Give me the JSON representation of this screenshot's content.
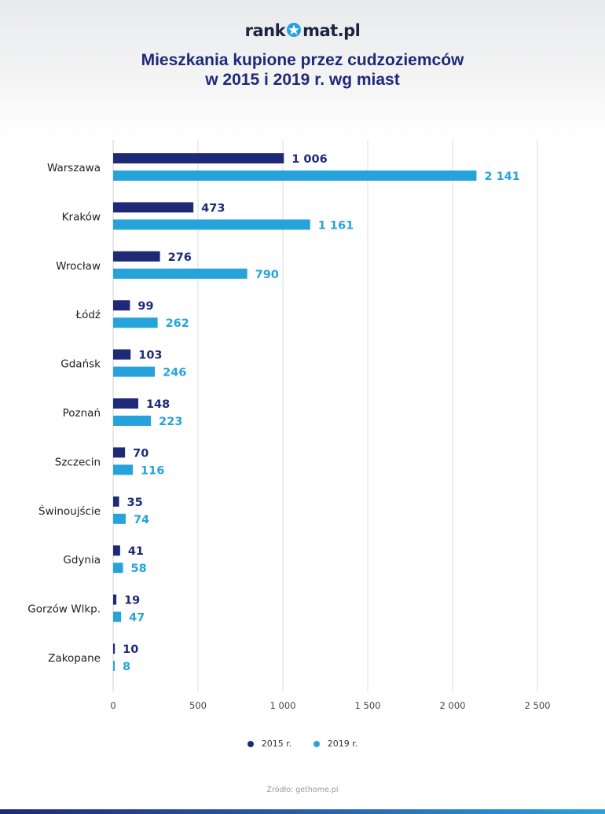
{
  "logo": {
    "text_before": "rank",
    "text_after": "mat.pl",
    "icon": "star-icon"
  },
  "chart_data": {
    "type": "bar",
    "orientation": "horizontal",
    "title_line1": "Mieszkania kupione przez cudzoziemców",
    "title_line2": "w 2015 i 2019 r. wg miast",
    "categories": [
      "Warszawa",
      "Kraków",
      "Wrocław",
      "Łódź",
      "Gdańsk",
      "Poznań",
      "Szczecin",
      "Świnoujście",
      "Gdynia",
      "Gorzów Wlkp.",
      "Zakopane"
    ],
    "series": [
      {
        "name": "2015 r.",
        "color": "#1e2a78",
        "values": [
          1006,
          473,
          276,
          99,
          103,
          148,
          70,
          35,
          41,
          19,
          10
        ],
        "labels": [
          "1 006",
          "473",
          "276",
          "99",
          "103",
          "148",
          "70",
          "35",
          "41",
          "19",
          "10"
        ]
      },
      {
        "name": "2019 r.",
        "color": "#27a3dc",
        "values": [
          2141,
          1161,
          790,
          262,
          246,
          223,
          116,
          74,
          58,
          47,
          8
        ],
        "labels": [
          "2 141",
          "1 161",
          "790",
          "262",
          "246",
          "223",
          "116",
          "74",
          "58",
          "47",
          "8"
        ]
      }
    ],
    "xlim": [
      0,
      2500
    ],
    "xticks": [
      0,
      500,
      1000,
      1500,
      2000,
      2500
    ],
    "xtick_labels": [
      "0",
      "500",
      "1 000",
      "1 500",
      "2 000",
      "2 500"
    ],
    "grid": true,
    "legend_position": "bottom-center"
  },
  "source": "Źródło: gethome.pl"
}
